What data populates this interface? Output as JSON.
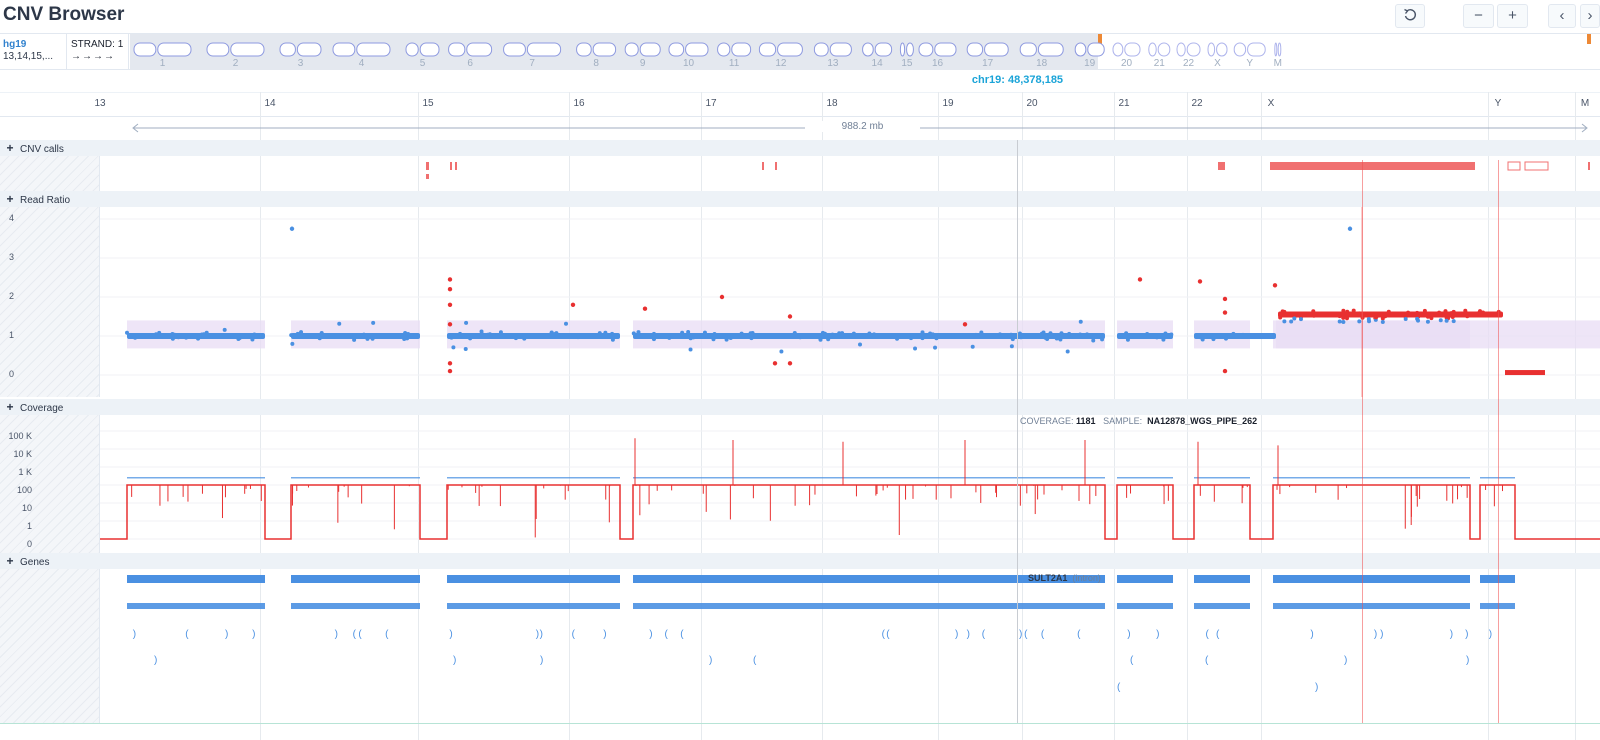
{
  "app": {
    "title": "CNV Browser"
  },
  "toolbar": {
    "reset_icon": "undo-icon",
    "zoom_out_label": "−",
    "zoom_in_label": "+",
    "prev_label": "‹",
    "next_label": "›"
  },
  "genome": {
    "build": "hg19",
    "chromosomes": "13,14,15,...",
    "strand_label": "STRAND:",
    "strand_value": "1",
    "strand_arrows": "→→→→"
  },
  "ideogram": {
    "chromosomes": [
      "1",
      "2",
      "3",
      "4",
      "5",
      "6",
      "7",
      "8",
      "9",
      "10",
      "11",
      "12",
      "13",
      "14",
      "15",
      "16",
      "17",
      "18",
      "19",
      "20",
      "21",
      "22",
      "X",
      "Y",
      "M"
    ]
  },
  "position": {
    "label": "chr19: 48,378,185"
  },
  "axis": {
    "chromosomes": [
      "13",
      "14",
      "15",
      "16",
      "17",
      "18",
      "19",
      "20",
      "21",
      "22",
      "X",
      "Y",
      "M"
    ]
  },
  "range": {
    "label": "988.2 mb"
  },
  "tracks": {
    "cnv_calls": {
      "title": "CNV calls"
    },
    "read_ratio": {
      "title": "Read Ratio",
      "ticks": [
        "4",
        "3",
        "2",
        "1",
        "0"
      ]
    },
    "coverage": {
      "title": "Coverage",
      "ticks": [
        "100 K",
        "10 K",
        "1 K",
        "100",
        "10",
        "1",
        "0"
      ],
      "info_label": "COVERAGE:",
      "info_value": "1181",
      "sample_label": "SAMPLE:",
      "sample_value": "NA12878_WGS_PIPE_262"
    },
    "genes": {
      "title": "Genes",
      "gene_name": "SULT2A1",
      "gene_note": "(intron)"
    }
  },
  "colors": {
    "accent": "#1ba4d8",
    "normal": "#4a90e2",
    "gain": "#e83030",
    "cnv": "#f07070",
    "band": "#e8dcf4"
  }
}
